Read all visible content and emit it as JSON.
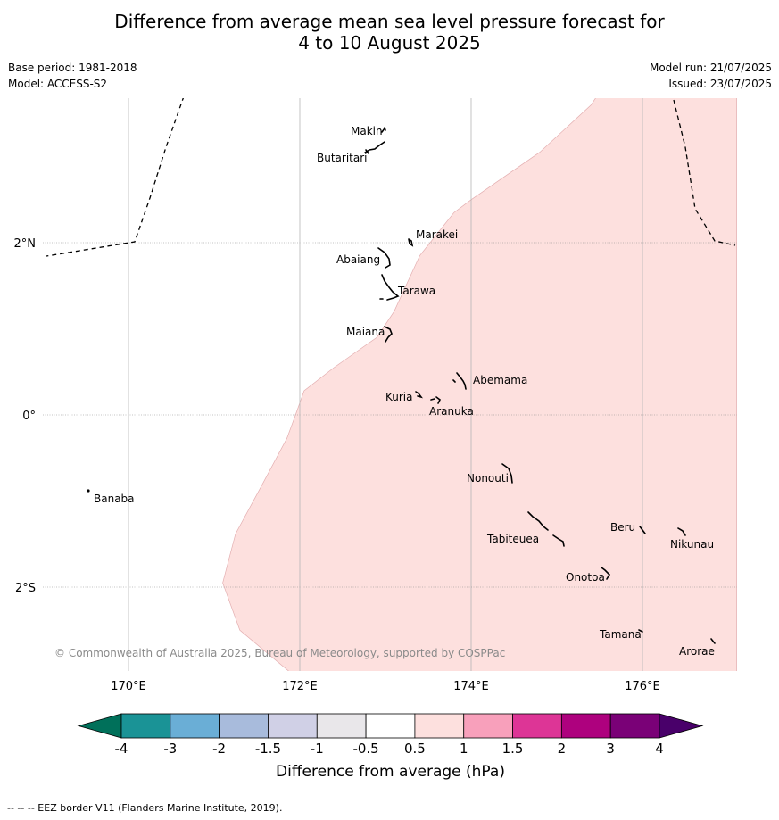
{
  "header": {
    "title_line1": "Difference from average mean sea level pressure forecast for",
    "title_line2": "4 to 10 August 2025",
    "base_period": "Base period: 1981-2018",
    "model": "Model: ACCESS-S2",
    "model_run": "Model run: 21/07/2025",
    "issued": "Issued: 23/07/2025"
  },
  "map": {
    "lon_range": [
      169.0,
      177.1
    ],
    "lat_range": [
      -3.0,
      3.75
    ],
    "lon_ticks": [
      {
        "lon": 170,
        "label": "170°E"
      },
      {
        "lon": 172,
        "label": "172°E"
      },
      {
        "lon": 174,
        "label": "174°E"
      },
      {
        "lon": 176,
        "label": "176°E"
      }
    ],
    "lat_ticks": [
      {
        "lat": 2,
        "label": "2°N"
      },
      {
        "lat": 0,
        "label": "0°"
      },
      {
        "lat": -2,
        "label": "2°S"
      }
    ],
    "copyright": "© Commonwealth of Australia 2025, Bureau of Meteorology, supported by COSPPac",
    "anomaly_fill_color": "#fde0de",
    "anomaly_region": [
      [
        175.5,
        3.75
      ],
      [
        175.4,
        3.6
      ],
      [
        174.8,
        3.05
      ],
      [
        174.0,
        2.5
      ],
      [
        173.8,
        2.35
      ],
      [
        173.4,
        1.85
      ],
      [
        173.1,
        1.2
      ],
      [
        172.9,
        0.9
      ],
      [
        172.4,
        0.55
      ],
      [
        172.05,
        0.28
      ],
      [
        171.95,
        0.0
      ],
      [
        171.85,
        -0.27
      ],
      [
        171.55,
        -0.83
      ],
      [
        171.25,
        -1.38
      ],
      [
        171.1,
        -1.95
      ],
      [
        171.3,
        -2.5
      ],
      [
        171.9,
        -3.0
      ],
      [
        177.1,
        -3.0
      ],
      [
        177.1,
        3.75
      ]
    ],
    "islands": [
      {
        "name": "Makin",
        "lon": 172.98,
        "lat": 3.35
      },
      {
        "name": "Butaritari",
        "lon": 172.85,
        "lat": 3.05
      },
      {
        "name": "Marakei",
        "lon": 173.35,
        "lat": 2.0
      },
      {
        "name": "Abaiang",
        "lon": 172.95,
        "lat": 1.8
      },
      {
        "name": "Tarawa",
        "lon": 173.05,
        "lat": 1.4
      },
      {
        "name": "Maiana",
        "lon": 173.0,
        "lat": 0.95
      },
      {
        "name": "Abemama",
        "lon": 173.9,
        "lat": 0.38
      },
      {
        "name": "Kuria",
        "lon": 173.4,
        "lat": 0.23
      },
      {
        "name": "Aranuka",
        "lon": 173.6,
        "lat": 0.17
      },
      {
        "name": "Nonouti",
        "lon": 174.4,
        "lat": -0.65
      },
      {
        "name": "Banaba",
        "lon": 169.55,
        "lat": -0.87
      },
      {
        "name": "Tabiteuea",
        "lon": 174.8,
        "lat": -1.3
      },
      {
        "name": "Beru",
        "lon": 175.98,
        "lat": -1.33
      },
      {
        "name": "Nikunau",
        "lon": 176.45,
        "lat": -1.37
      },
      {
        "name": "Onotoa",
        "lon": 175.55,
        "lat": -1.85
      },
      {
        "name": "Tamana",
        "lon": 175.98,
        "lat": -2.5
      },
      {
        "name": "Arorae",
        "lon": 176.8,
        "lat": -2.65
      }
    ]
  },
  "colorbar": {
    "label": "Difference from average (hPa)",
    "ticks": [
      "-4",
      "-3",
      "-2",
      "-1.5",
      "-1",
      "-0.5",
      "0.5",
      "1",
      "1.5",
      "2",
      "3",
      "4"
    ],
    "colors": [
      "#1a9396",
      "#6aaed6",
      "#a8bbdc",
      "#d0d0e6",
      "#e9e7ea",
      "#ffffff",
      "#fde0de",
      "#f8a0bb",
      "#dd3596",
      "#ae017e",
      "#7a0177"
    ],
    "under_color": "#00705a",
    "over_color": "#49006a"
  },
  "footer": "--  --  -- EEZ border V11 (Flanders Marine Institute, 2019)."
}
